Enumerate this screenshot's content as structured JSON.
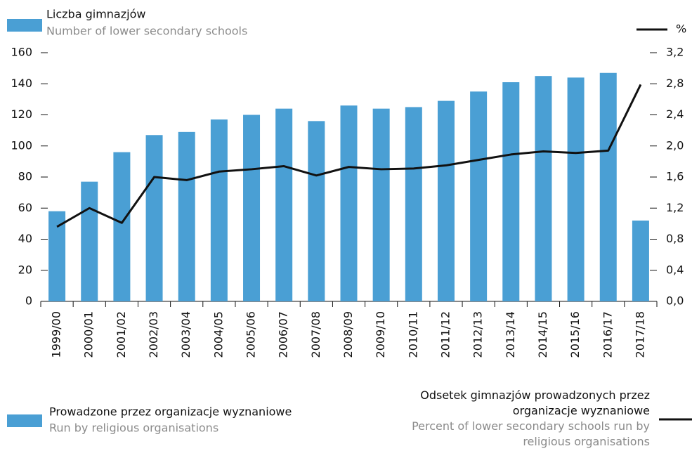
{
  "chart_data": {
    "type": "bar_line",
    "ylabel": "Liczba gimnazjów",
    "ylabel_en": "Number of lower secondary schools",
    "y2label": "%",
    "categories": [
      "1999/00",
      "2000/01",
      "2001/02",
      "2002/03",
      "2003/04",
      "2004/05",
      "2005/06",
      "2006/07",
      "2007/08",
      "2008/09",
      "2009/10",
      "2010/11",
      "2011/12",
      "2012/13",
      "2013/14",
      "2014/15",
      "2015/16",
      "2016/17",
      "2017/18"
    ],
    "series": [
      {
        "name": "Prowadzone przez organizacje wyznaniowe",
        "name_en": "Run by religious organisations",
        "color": "#4a9fd4",
        "type": "bar",
        "values": [
          58,
          77,
          96,
          107,
          109,
          117,
          120,
          124,
          116,
          126,
          124,
          125,
          129,
          135,
          141,
          145,
          144,
          147,
          52
        ]
      },
      {
        "name": "Odsetek gimnazjów prowadzonych przez organizacje wyznaniowe",
        "name_en": "Percent of lower secondary schools run by religious organisations",
        "color": "#111111",
        "type": "line",
        "axis": "y2",
        "values": [
          0.96,
          1.2,
          1.01,
          1.6,
          1.56,
          1.67,
          1.7,
          1.74,
          1.62,
          1.73,
          1.7,
          1.71,
          1.75,
          1.82,
          1.89,
          1.93,
          1.91,
          1.94,
          2.79
        ]
      }
    ],
    "ylim": [
      0,
      160
    ],
    "yticks": [
      0,
      20,
      40,
      60,
      80,
      100,
      120,
      140,
      160
    ],
    "y2lim": [
      0,
      3.2
    ],
    "y2ticks": [
      {
        "value": 0,
        "label": "0,0"
      },
      {
        "value": 0.4,
        "label": "0,4"
      },
      {
        "value": 0.8,
        "label": "0,8"
      },
      {
        "value": 1.2,
        "label": "1,2"
      },
      {
        "value": 1.6,
        "label": "1,6"
      },
      {
        "value": 2.0,
        "label": "2,0"
      },
      {
        "value": 2.4,
        "label": "2,4"
      },
      {
        "value": 2.8,
        "label": "2,8"
      },
      {
        "value": 3.2,
        "label": "3,2"
      }
    ],
    "grid": false
  }
}
